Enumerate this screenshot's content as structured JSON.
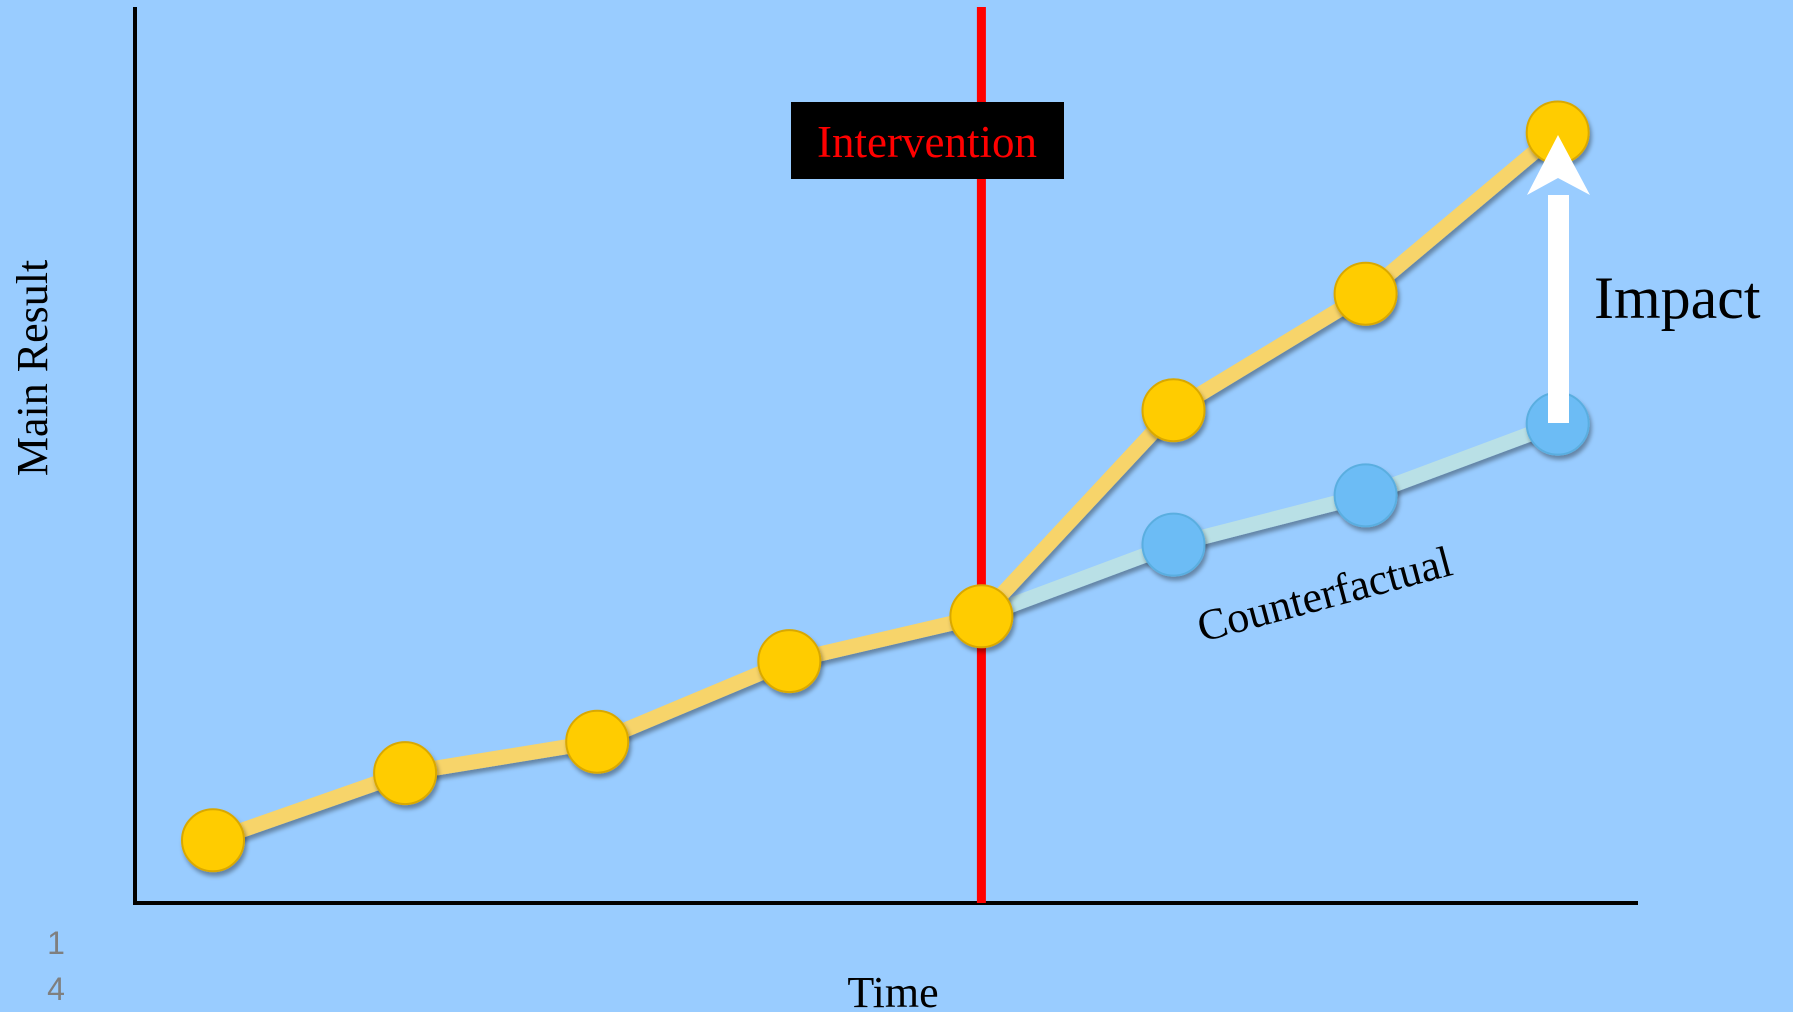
{
  "labels": {
    "y_axis": "Main Result",
    "x_axis": "Time",
    "intervention": "Intervention",
    "impact": "Impact",
    "counterfactual": "Counterfactual",
    "slide_number": [
      "1",
      "4"
    ]
  },
  "colors": {
    "background": "#99ccff",
    "axis": "#000000",
    "intervention_line": "#ff0000",
    "intervention_box": "#000000",
    "intervention_text": "#ff0000",
    "actual_line": "#f7d46a",
    "actual_marker": "#ffcc00",
    "counterfactual_line": "#b9e0e6",
    "counterfactual_marker": "#6cbcf5",
    "impact_arrow": "#ffffff",
    "slide_number": "#7f7f7f"
  },
  "series": {
    "actual": [
      {
        "t": 1,
        "v": 0.07
      },
      {
        "t": 2,
        "v": 0.145
      },
      {
        "t": 3,
        "v": 0.18
      },
      {
        "t": 4,
        "v": 0.27
      },
      {
        "t": 5,
        "v": 0.32
      },
      {
        "t": 6,
        "v": 0.55
      },
      {
        "t": 7,
        "v": 0.68
      },
      {
        "t": 8,
        "v": 0.86
      }
    ],
    "counterfactual": [
      {
        "t": 5,
        "v": 0.32
      },
      {
        "t": 6,
        "v": 0.4
      },
      {
        "t": 7,
        "v": 0.455
      },
      {
        "t": 8,
        "v": 0.535
      }
    ]
  },
  "intervention_t": 5
}
